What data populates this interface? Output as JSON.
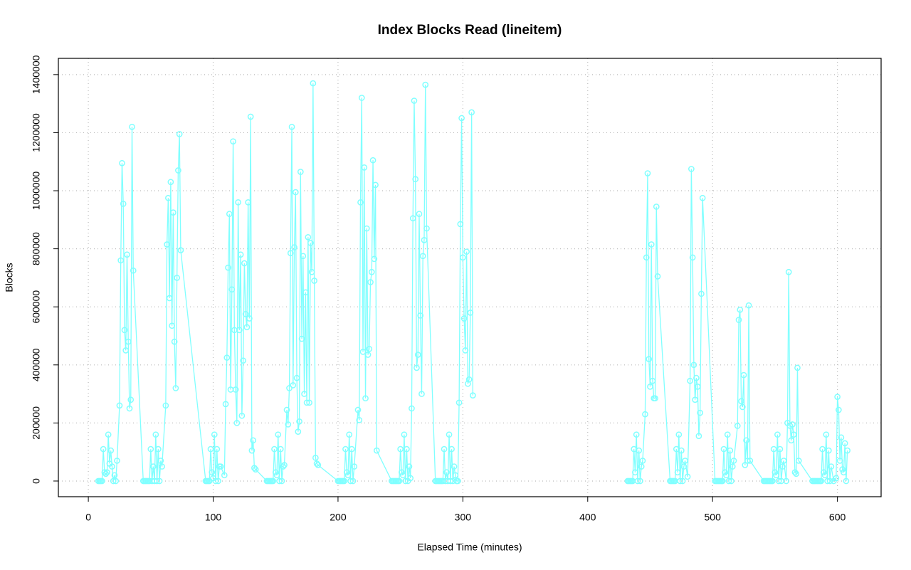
{
  "chart_data": {
    "type": "line",
    "title": "Index Blocks Read (lineitem)",
    "x_label": "Elapsed Time (minutes)",
    "y_label": "Blocks",
    "color": "#80ffff",
    "grid": true,
    "markers": "circle",
    "xlim": [
      -24,
      635
    ],
    "ylim": [
      -54000,
      1456000
    ],
    "xticks": [
      0,
      100,
      200,
      300,
      400,
      500,
      600
    ],
    "yticks": [
      0,
      200000,
      400000,
      600000,
      800000,
      1000000,
      1200000,
      1400000
    ],
    "x": [
      8,
      9,
      10,
      11,
      12,
      13,
      14,
      15,
      16,
      17,
      18,
      19,
      20,
      21,
      22,
      23,
      25,
      26,
      27,
      28,
      29,
      30,
      31,
      32,
      33,
      34,
      35,
      36,
      44,
      45,
      46,
      47,
      48,
      49,
      50,
      51,
      52,
      53,
      54,
      55,
      56,
      57,
      58,
      59,
      62,
      63,
      64,
      65,
      66,
      67,
      68,
      69,
      70,
      71,
      72,
      73,
      74,
      94,
      95,
      96,
      97,
      98,
      99,
      100,
      101,
      102,
      103,
      104,
      105,
      106,
      109,
      110,
      111,
      112,
      113,
      114,
      115,
      116,
      117,
      118,
      119,
      120,
      121,
      122,
      123,
      124,
      125,
      126,
      127,
      128,
      129,
      130,
      131,
      132,
      133,
      134,
      143,
      144,
      145,
      146,
      147,
      148,
      149,
      150,
      151,
      152,
      153,
      154,
      155,
      156,
      157,
      159,
      160,
      161,
      162,
      163,
      164,
      165,
      166,
      167,
      168,
      169,
      170,
      171,
      172,
      173,
      174,
      175,
      176,
      177,
      178,
      179,
      180,
      181,
      182,
      183,
      184,
      200,
      201,
      202,
      203,
      204,
      205,
      206,
      207,
      208,
      209,
      210,
      211,
      212,
      213,
      216,
      217,
      218,
      219,
      220,
      221,
      222,
      223,
      224,
      225,
      226,
      227,
      228,
      229,
      230,
      231,
      243,
      244,
      245,
      246,
      247,
      248,
      249,
      250,
      251,
      252,
      253,
      254,
      255,
      256,
      257,
      258,
      259,
      260,
      261,
      262,
      263,
      264,
      265,
      266,
      267,
      268,
      269,
      270,
      271,
      278,
      279,
      280,
      281,
      282,
      283,
      284,
      285,
      286,
      287,
      288,
      289,
      290,
      291,
      292,
      293,
      294,
      295,
      296,
      297,
      298,
      299,
      300,
      301,
      302,
      303,
      304,
      305,
      306,
      307,
      308,
      370,
      432,
      433,
      434,
      435,
      436,
      437,
      438,
      439,
      440,
      441,
      442,
      443,
      444,
      446,
      447,
      448,
      449,
      450,
      451,
      452,
      453,
      454,
      455,
      456,
      466,
      467,
      468,
      469,
      470,
      471,
      472,
      473,
      474,
      475,
      476,
      477,
      478,
      480,
      482,
      483,
      484,
      485,
      486,
      487,
      488,
      489,
      490,
      491,
      492,
      502,
      503,
      504,
      505,
      506,
      507,
      508,
      509,
      510,
      511,
      512,
      513,
      514,
      515,
      516,
      517,
      520,
      521,
      522,
      523,
      524,
      525,
      526,
      527,
      528,
      529,
      530,
      541,
      542,
      543,
      544,
      545,
      546,
      547,
      548,
      549,
      550,
      551,
      552,
      553,
      554,
      555,
      556,
      557,
      559,
      560,
      561,
      562,
      563,
      564,
      565,
      566,
      567,
      568,
      569,
      580,
      581,
      582,
      583,
      584,
      585,
      586,
      587,
      588,
      589,
      590,
      591,
      592,
      593,
      594,
      595,
      597,
      599,
      600,
      601,
      602,
      603,
      604,
      605,
      606,
      607,
      608
    ],
    "values": [
      0,
      0,
      0,
      0,
      110000,
      30000,
      25000,
      30000,
      160000,
      60000,
      105000,
      50000,
      0,
      20000,
      0,
      70000,
      260000,
      760000,
      1095000,
      955000,
      520000,
      450000,
      780000,
      480000,
      250000,
      280000,
      1220000,
      725000,
      0,
      0,
      0,
      0,
      0,
      0,
      110000,
      0,
      50000,
      0,
      160000,
      0,
      110000,
      0,
      70000,
      50000,
      260000,
      815000,
      975000,
      630000,
      1030000,
      535000,
      925000,
      480000,
      320000,
      700000,
      1070000,
      1195000,
      795000,
      0,
      0,
      0,
      0,
      110000,
      30000,
      10000,
      160000,
      0,
      110000,
      0,
      50000,
      50000,
      20000,
      265000,
      425000,
      735000,
      920000,
      315000,
      660000,
      1170000,
      520000,
      315000,
      200000,
      960000,
      520000,
      780000,
      225000,
      415000,
      750000,
      575000,
      530000,
      960000,
      560000,
      1255000,
      105000,
      140000,
      45000,
      40000,
      0,
      0,
      0,
      0,
      0,
      0,
      110000,
      30000,
      20000,
      160000,
      0,
      110000,
      0,
      50000,
      55000,
      245000,
      195000,
      320000,
      785000,
      1220000,
      330000,
      805000,
      995000,
      355000,
      170000,
      205000,
      1065000,
      490000,
      775000,
      300000,
      650000,
      270000,
      840000,
      270000,
      820000,
      720000,
      1370000,
      690000,
      80000,
      60000,
      55000,
      0,
      0,
      0,
      0,
      0,
      0,
      110000,
      30000,
      20000,
      160000,
      0,
      110000,
      0,
      50000,
      245000,
      210000,
      960000,
      1320000,
      445000,
      1080000,
      285000,
      870000,
      435000,
      455000,
      685000,
      720000,
      1105000,
      765000,
      1020000,
      105000,
      0,
      0,
      0,
      0,
      0,
      0,
      0,
      110000,
      30000,
      20000,
      160000,
      0,
      110000,
      0,
      50000,
      10000,
      250000,
      905000,
      1310000,
      1040000,
      390000,
      435000,
      920000,
      570000,
      300000,
      775000,
      830000,
      1365000,
      870000,
      0,
      0,
      0,
      0,
      0,
      0,
      0,
      110000,
      0,
      30000,
      0,
      160000,
      0,
      110000,
      0,
      50000,
      20000,
      0,
      0,
      270000,
      885000,
      1250000,
      770000,
      560000,
      450000,
      790000,
      335000,
      350000,
      580000,
      1270000,
      295000,
      null,
      0,
      0,
      0,
      0,
      0,
      110000,
      30000,
      160000,
      0,
      105000,
      0,
      50000,
      70000,
      230000,
      770000,
      1060000,
      420000,
      325000,
      815000,
      345000,
      285000,
      285000,
      945000,
      705000,
      0,
      0,
      0,
      0,
      0,
      110000,
      30000,
      160000,
      0,
      105000,
      0,
      50000,
      70000,
      15000,
      345000,
      1075000,
      770000,
      400000,
      280000,
      355000,
      325000,
      155000,
      235000,
      645000,
      975000,
      0,
      0,
      0,
      0,
      0,
      0,
      0,
      110000,
      30000,
      20000,
      160000,
      0,
      105000,
      0,
      50000,
      70000,
      190000,
      555000,
      590000,
      275000,
      255000,
      365000,
      55000,
      140000,
      70000,
      605000,
      70000,
      0,
      0,
      0,
      0,
      0,
      0,
      0,
      0,
      110000,
      30000,
      20000,
      160000,
      0,
      110000,
      0,
      50000,
      70000,
      0,
      200000,
      720000,
      190000,
      140000,
      195000,
      160000,
      30000,
      25000,
      390000,
      70000,
      0,
      0,
      0,
      0,
      0,
      0,
      0,
      0,
      110000,
      30000,
      20000,
      160000,
      0,
      105000,
      0,
      50000,
      0,
      10000,
      290000,
      245000,
      70000,
      150000,
      40000,
      30000,
      130000,
      0,
      105000
    ]
  }
}
